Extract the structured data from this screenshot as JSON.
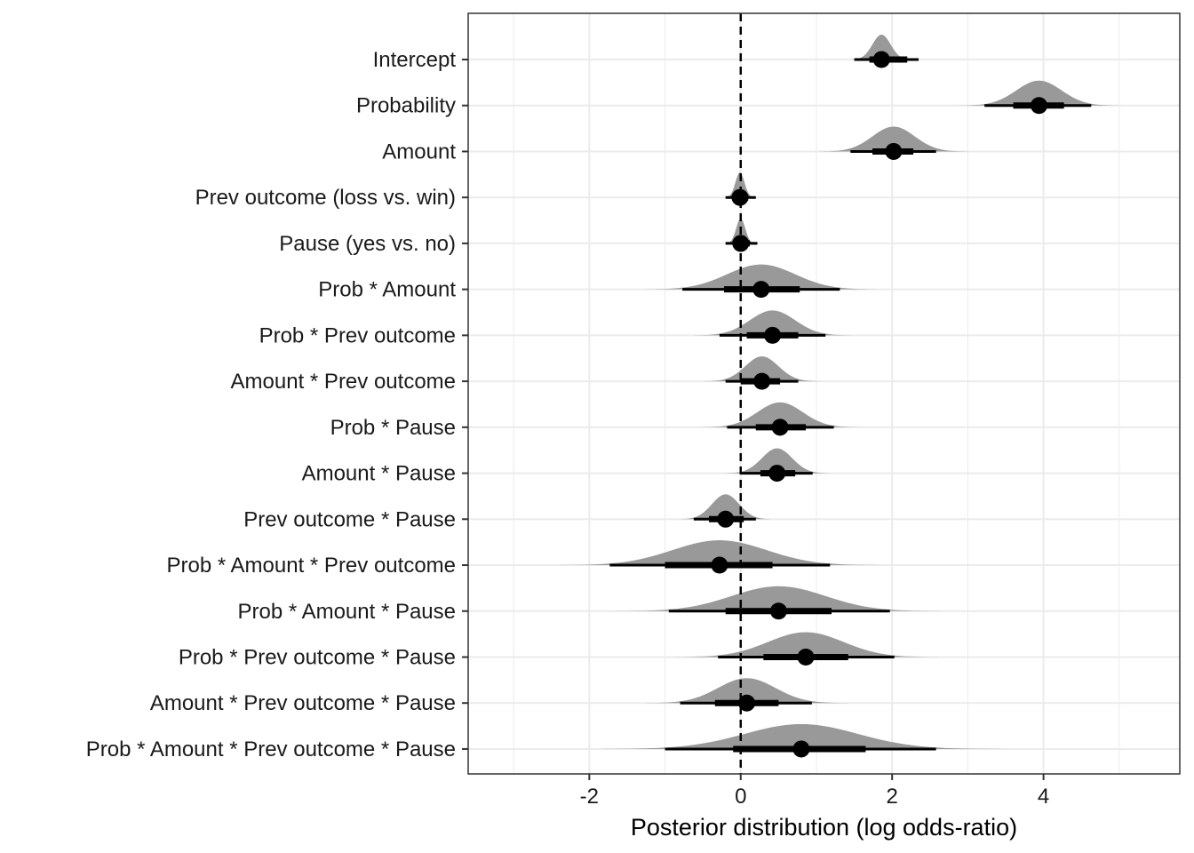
{
  "chart_data": {
    "type": "forest",
    "xlabel": "Posterior distribution (log odds-ratio)",
    "xlim": [
      -3.6,
      5.8
    ],
    "xticks": [
      -2,
      0,
      2,
      4
    ],
    "xtick_labels": [
      "-2",
      "0",
      "2",
      "4"
    ],
    "reference_line": 0,
    "grid": true,
    "colors": {
      "density": "#999999",
      "interval": "#000000",
      "grid": "#ebebeb",
      "panel_border": "#333333"
    },
    "terms": [
      {
        "label": "Intercept",
        "median": 1.86,
        "inner": [
          1.7,
          2.2
        ],
        "outer": [
          1.5,
          2.35
        ],
        "sd": 0.12
      },
      {
        "label": "Probability",
        "median": 3.94,
        "inner": [
          3.6,
          4.27
        ],
        "outer": [
          3.22,
          4.63
        ],
        "sd": 0.3
      },
      {
        "label": "Amount",
        "median": 2.02,
        "inner": [
          1.74,
          2.28
        ],
        "outer": [
          1.45,
          2.58
        ],
        "sd": 0.28
      },
      {
        "label": "Prev outcome (loss vs. win)",
        "median": -0.01,
        "inner": [
          -0.1,
          0.1
        ],
        "outer": [
          -0.2,
          0.2
        ],
        "sd": 0.06
      },
      {
        "label": "Pause (yes vs. no)",
        "median": 0.0,
        "inner": [
          -0.1,
          0.12
        ],
        "outer": [
          -0.2,
          0.22
        ],
        "sd": 0.06
      },
      {
        "label": "Prob * Amount",
        "median": 0.27,
        "inner": [
          -0.22,
          0.78
        ],
        "outer": [
          -0.77,
          1.31
        ],
        "sd": 0.45
      },
      {
        "label": "Prob * Prev outcome",
        "median": 0.42,
        "inner": [
          0.08,
          0.76
        ],
        "outer": [
          -0.28,
          1.12
        ],
        "sd": 0.3
      },
      {
        "label": "Amount * Prev outcome",
        "median": 0.28,
        "inner": [
          0.0,
          0.52
        ],
        "outer": [
          -0.2,
          0.76
        ],
        "sd": 0.22
      },
      {
        "label": "Prob * Pause",
        "median": 0.52,
        "inner": [
          0.2,
          0.86
        ],
        "outer": [
          -0.18,
          1.23
        ],
        "sd": 0.3
      },
      {
        "label": "Amount * Pause",
        "median": 0.48,
        "inner": [
          0.26,
          0.72
        ],
        "outer": [
          0.0,
          0.95
        ],
        "sd": 0.2
      },
      {
        "label": "Prev outcome * Pause",
        "median": -0.2,
        "inner": [
          -0.42,
          0.04
        ],
        "outer": [
          -0.62,
          0.2
        ],
        "sd": 0.18
      },
      {
        "label": "Prob * Amount * Prev outcome",
        "median": -0.28,
        "inner": [
          -1.0,
          0.42
        ],
        "outer": [
          -1.73,
          1.18
        ],
        "sd": 0.62
      },
      {
        "label": "Prob * Amount * Pause",
        "median": 0.5,
        "inner": [
          -0.2,
          1.2
        ],
        "outer": [
          -0.95,
          1.97
        ],
        "sd": 0.62
      },
      {
        "label": "Prob * Prev outcome * Pause",
        "median": 0.86,
        "inner": [
          0.3,
          1.42
        ],
        "outer": [
          -0.3,
          2.03
        ],
        "sd": 0.5
      },
      {
        "label": "Amount * Prev outcome * Pause",
        "median": 0.08,
        "inner": [
          -0.34,
          0.5
        ],
        "outer": [
          -0.8,
          0.94
        ],
        "sd": 0.38
      },
      {
        "label": "Prob * Amount * Prev outcome * Pause",
        "median": 0.8,
        "inner": [
          -0.1,
          1.65
        ],
        "outer": [
          -1.0,
          2.58
        ],
        "sd": 0.75
      }
    ]
  }
}
